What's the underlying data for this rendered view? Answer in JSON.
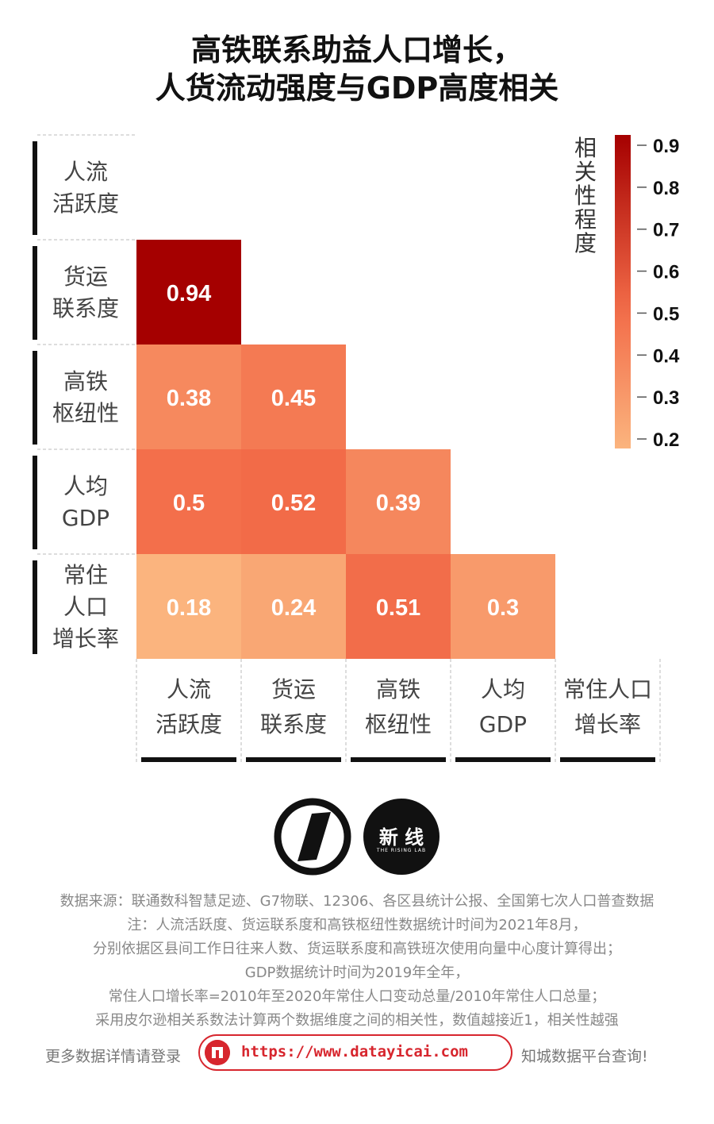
{
  "title_line1": "高铁联系助益人口增长，",
  "title_line2": "人货流动强度与GDP高度相关",
  "chart_data": {
    "type": "heatmap",
    "variables": [
      [
        "人流",
        "活跃度"
      ],
      [
        "货运",
        "联系度"
      ],
      [
        "高铁",
        "枢纽性"
      ],
      [
        "人均",
        "GDP"
      ],
      [
        "常住",
        "人口",
        "增长率"
      ]
    ],
    "x_labels": [
      [
        "人流",
        "活跃度"
      ],
      [
        "货运",
        "联系度"
      ],
      [
        "高铁",
        "枢纽性"
      ],
      [
        "人均",
        "GDP"
      ],
      [
        "常住人口",
        "增长率"
      ]
    ],
    "lower_triangle": [
      [],
      [
        0.94
      ],
      [
        0.38,
        0.45
      ],
      [
        0.5,
        0.52,
        0.39
      ],
      [
        0.18,
        0.24,
        0.51,
        0.3
      ]
    ],
    "value_labels": [
      [],
      [
        "0.94"
      ],
      [
        "0.38",
        "0.45"
      ],
      [
        "0.5",
        "0.52",
        "0.39"
      ],
      [
        "0.18",
        "0.24",
        "0.51",
        "0.3"
      ]
    ],
    "colorbar": {
      "title": "相关性程度",
      "range": [
        0.18,
        0.94
      ],
      "ticks": [
        0.9,
        0.8,
        0.7,
        0.6,
        0.5,
        0.4,
        0.3,
        0.2
      ],
      "tick_labels": [
        "0.9",
        "0.8",
        "0.7",
        "0.6",
        "0.5",
        "0.4",
        "0.3",
        "0.2"
      ],
      "color_low": "#fbb47e",
      "color_mid": "#f26b48",
      "color_high": "#a50000"
    }
  },
  "logo_b": {
    "text": "新 线",
    "sub": "THE RISING LAB"
  },
  "notes": [
    "数据来源：联通数科智慧足迹、G7物联、12306、各区县统计公报、全国第七次人口普查数据",
    "注：人流活跃度、货运联系度和高铁枢纽性数据统计时间为2021年8月，",
    "分别依据区县间工作日往来人数、货运联系度和高铁班次使用向量中心度计算得出；",
    "GDP数据统计时间为2019年全年，",
    "常住人口增长率=2010年至2020年常住人口变动总量/2010年常住人口总量；",
    "采用皮尔逊相关系数法计算两个数据维度之间的相关性，数值越接近1，相关性越强"
  ],
  "footer": {
    "left": "更多数据详情请登录",
    "url": "https://www.datayicai.com",
    "right": "知城数据平台查询!"
  }
}
